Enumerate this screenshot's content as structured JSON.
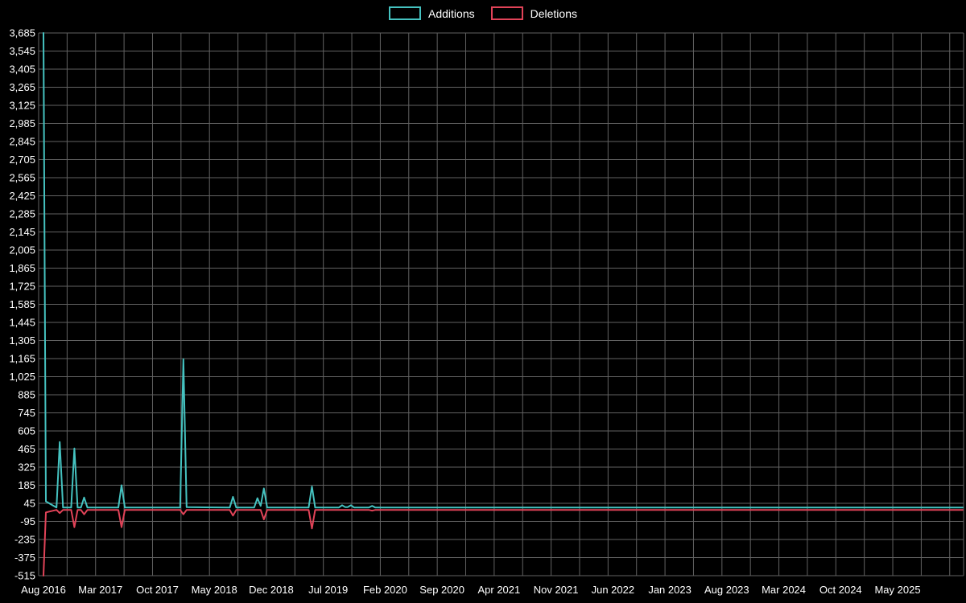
{
  "legend": {
    "additions_label": "Additions",
    "deletions_label": "Deletions"
  },
  "colors": {
    "additions": "#45c2c0",
    "deletions": "#e14358",
    "grid": "#626262",
    "background": "#000000",
    "text": "#ffffff"
  },
  "chart_data": {
    "type": "line",
    "title": "",
    "xlabel": "",
    "ylabel": "",
    "legend_position": "top-center",
    "grid": true,
    "y_axis": {
      "min": -515,
      "max": 3685,
      "tick_step": 140,
      "tick_labels": [
        "3,685",
        "3,545",
        "3,405",
        "3,265",
        "3,125",
        "2,985",
        "2,845",
        "2,705",
        "2,565",
        "2,425",
        "2,285",
        "2,145",
        "2,005",
        "1,865",
        "1,725",
        "1,585",
        "1,445",
        "1,305",
        "1,165",
        "1,025",
        "885",
        "745",
        "605",
        "465",
        "325",
        "185",
        "45",
        "-95",
        "-235",
        "-375",
        "-515"
      ]
    },
    "x_axis": {
      "unit": "months_since_aug_2016",
      "labels": [
        {
          "label": "Aug 2016",
          "m": 0
        },
        {
          "label": "Mar 2017",
          "m": 7
        },
        {
          "label": "Oct 2017",
          "m": 14
        },
        {
          "label": "May 2018",
          "m": 21
        },
        {
          "label": "Dec 2018",
          "m": 28
        },
        {
          "label": "Jul 2019",
          "m": 35
        },
        {
          "label": "Feb 2020",
          "m": 42
        },
        {
          "label": "Sep 2020",
          "m": 49
        },
        {
          "label": "Apr 2021",
          "m": 56
        },
        {
          "label": "Nov 2021",
          "m": 63
        },
        {
          "label": "Jun 2022",
          "m": 70
        },
        {
          "label": "Jan 2023",
          "m": 77
        },
        {
          "label": "Aug 2023",
          "m": 84
        },
        {
          "label": "Mar 2024",
          "m": 91
        },
        {
          "label": "Oct 2024",
          "m": 98
        },
        {
          "label": "May 2025",
          "m": 105
        }
      ]
    },
    "series": [
      {
        "name": "Additions",
        "color_key": "additions",
        "points": [
          [
            0,
            3685
          ],
          [
            0.3,
            60
          ],
          [
            1.6,
            12
          ],
          [
            2,
            520
          ],
          [
            2.4,
            12
          ],
          [
            3.4,
            12
          ],
          [
            3.8,
            470
          ],
          [
            4.2,
            12
          ],
          [
            4.6,
            12
          ],
          [
            5,
            90
          ],
          [
            5.4,
            12
          ],
          [
            9.2,
            12
          ],
          [
            9.6,
            185
          ],
          [
            10,
            12
          ],
          [
            16.8,
            12
          ],
          [
            17.2,
            1160
          ],
          [
            17.6,
            15
          ],
          [
            22.9,
            12
          ],
          [
            23.3,
            95
          ],
          [
            23.7,
            12
          ],
          [
            25.9,
            12
          ],
          [
            26.3,
            85
          ],
          [
            26.7,
            25
          ],
          [
            27.1,
            160
          ],
          [
            27.5,
            12
          ],
          [
            32.6,
            12
          ],
          [
            33,
            175
          ],
          [
            33.4,
            12
          ],
          [
            36.3,
            12
          ],
          [
            36.7,
            30
          ],
          [
            37.1,
            15
          ],
          [
            37.4,
            15
          ],
          [
            37.8,
            30
          ],
          [
            38.2,
            12
          ],
          [
            40,
            12
          ],
          [
            40.4,
            25
          ],
          [
            40.8,
            12
          ],
          [
            113,
            12
          ]
        ]
      },
      {
        "name": "Deletions",
        "color_key": "deletions",
        "points": [
          [
            0,
            -515
          ],
          [
            0.3,
            -25
          ],
          [
            1.6,
            -6
          ],
          [
            2,
            -30
          ],
          [
            2.4,
            -6
          ],
          [
            3.4,
            -6
          ],
          [
            3.8,
            -140
          ],
          [
            4.2,
            -6
          ],
          [
            4.6,
            -6
          ],
          [
            5,
            -40
          ],
          [
            5.4,
            -6
          ],
          [
            9.2,
            -6
          ],
          [
            9.6,
            -140
          ],
          [
            10,
            -6
          ],
          [
            16.8,
            -6
          ],
          [
            17.2,
            -40
          ],
          [
            17.6,
            -6
          ],
          [
            22.9,
            -6
          ],
          [
            23.3,
            -50
          ],
          [
            23.7,
            -6
          ],
          [
            26.7,
            -6
          ],
          [
            27.1,
            -80
          ],
          [
            27.5,
            -6
          ],
          [
            32.6,
            -6
          ],
          [
            33,
            -150
          ],
          [
            33.4,
            -6
          ],
          [
            40,
            -6
          ],
          [
            40.4,
            -12
          ],
          [
            40.8,
            -6
          ],
          [
            113,
            -6
          ]
        ]
      }
    ]
  }
}
